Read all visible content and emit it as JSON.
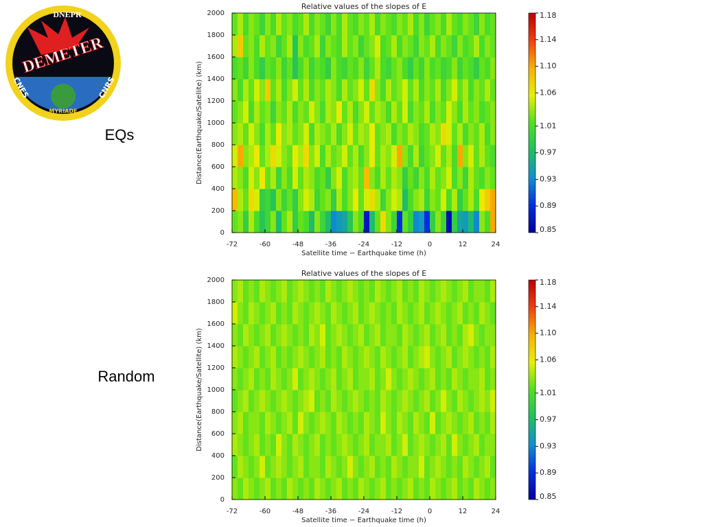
{
  "logo": {
    "top": "DNEPR",
    "name": "DEMETER",
    "left": "CNES",
    "right": "CNRS",
    "bottom": "MYRIADE"
  },
  "labels": [
    "EQs",
    "Random"
  ],
  "chart_data": [
    {
      "type": "heatmap",
      "title": "Relative values of the slopes of E",
      "xlabel": "Satellite time − Earthquake time (h)",
      "ylabel": "Distance(Earthquake/Satellite) (km)",
      "xlim": [
        -72,
        24
      ],
      "xticks": [
        -72,
        -60,
        -48,
        -36,
        -24,
        -12,
        0,
        12,
        24
      ],
      "ylim": [
        0,
        2000
      ],
      "yticks": [
        0,
        200,
        400,
        600,
        800,
        1000,
        1200,
        1400,
        1600,
        1800,
        2000
      ],
      "zlim": [
        0.85,
        1.18
      ],
      "zticks": [
        0.85,
        0.89,
        0.93,
        0.97,
        1.01,
        1.06,
        {
          "value": 1.1,
          "label": "1.10"
        },
        1.14,
        1.18
      ],
      "colormap": [
        "#0000a0",
        "#0030e0",
        "#1090d0",
        "#20c060",
        "#50e020",
        "#e8f000",
        "#f8b000",
        "#f04010",
        "#c00000"
      ],
      "z": [
        [
          1.02,
          1.03,
          0.99,
          1.04,
          1.01,
          0.98,
          1.0,
          1.03,
          0.97,
          1.02,
          1.04,
          0.99,
          1.02,
          1.01,
          0.97,
          1.03,
          1.0,
          0.97,
          0.93,
          0.94,
          0.95,
          0.98,
          1.03,
          1.01,
          0.87,
          0.97,
          1.02,
          1.07,
          1.03,
          1.0,
          0.89,
          1.02,
          0.99,
          0.93,
          0.94,
          0.89,
          0.99,
          1.03,
          1.0,
          0.86,
          0.99,
          0.95,
          0.94,
          0.97,
          0.93,
          1.03,
          1.01,
          1.1
        ],
        [
          1.09,
          1.04,
          1.02,
          1.07,
          1.05,
          0.99,
          1.0,
          0.98,
          1.03,
          1.0,
          1.02,
          0.99,
          1.03,
          1.05,
          1.04,
          1.0,
          1.02,
          1.03,
          0.99,
          1.04,
          1.01,
          1.03,
          1.06,
          1.02,
          1.05,
          1.07,
          1.04,
          1.0,
          1.03,
          1.05,
          1.04,
          0.97,
          1.01,
          1.03,
          1.04,
          1.0,
          1.03,
          1.02,
          1.05,
          1.01,
          1.04,
          0.99,
          1.02,
          1.04,
          1.01,
          1.06,
          1.08,
          1.1
        ],
        [
          1.04,
          1.03,
          1.01,
          1.05,
          1.03,
          1.06,
          1.02,
          1.04,
          1.0,
          1.03,
          1.01,
          1.05,
          1.02,
          1.04,
          1.03,
          1.01,
          1.02,
          0.99,
          1.03,
          1.05,
          1.01,
          1.03,
          1.04,
          1.02,
          1.09,
          1.03,
          1.01,
          1.04,
          1.02,
          1.04,
          1.03,
          0.99,
          1.02,
          1.0,
          1.03,
          1.01,
          1.04,
          1.02,
          1.03,
          1.05,
          1.01,
          1.03,
          1.0,
          1.04,
          1.02,
          1.01,
          1.03,
          1.02
        ],
        [
          1.05,
          1.1,
          1.03,
          1.04,
          1.06,
          1.02,
          1.04,
          1.07,
          1.05,
          1.03,
          1.02,
          1.06,
          1.04,
          1.07,
          1.03,
          1.05,
          1.01,
          1.04,
          1.02,
          1.03,
          1.05,
          1.02,
          1.04,
          1.01,
          1.03,
          1.06,
          1.02,
          1.04,
          1.03,
          1.05,
          1.1,
          1.03,
          1.01,
          1.04,
          1.0,
          1.02,
          1.03,
          1.05,
          1.02,
          1.04,
          1.01,
          1.1,
          1.03,
          1.05,
          1.02,
          1.04,
          1.02,
          1.01
        ],
        [
          1.03,
          1.04,
          1.02,
          1.05,
          1.03,
          1.01,
          1.04,
          1.02,
          1.06,
          1.03,
          1.04,
          1.02,
          1.03,
          1.05,
          1.01,
          1.04,
          1.03,
          1.02,
          1.04,
          1.01,
          1.03,
          1.05,
          1.02,
          1.04,
          1.03,
          1.06,
          1.02,
          1.03,
          1.04,
          1.01,
          1.03,
          1.02,
          1.04,
          1.03,
          1.01,
          1.02,
          1.04,
          1.03,
          1.07,
          1.05,
          1.02,
          1.04,
          1.01,
          1.03,
          1.02,
          1.04,
          1.01,
          1.03
        ],
        [
          1.02,
          1.03,
          1.05,
          1.01,
          1.04,
          1.02,
          1.03,
          1.0,
          1.03,
          1.02,
          1.04,
          1.01,
          1.03,
          1.02,
          1.05,
          1.03,
          1.01,
          1.04,
          1.03,
          1.06,
          1.02,
          1.04,
          1.01,
          1.03,
          1.05,
          1.02,
          1.04,
          1.03,
          1.01,
          1.04,
          1.02,
          1.05,
          1.01,
          1.03,
          1.02,
          1.04,
          1.01,
          1.03,
          1.02,
          1.05,
          1.03,
          1.01,
          1.04,
          1.02,
          1.03,
          1.01,
          1.02,
          1.03
        ],
        [
          1.03,
          1.01,
          1.04,
          1.02,
          1.05,
          1.03,
          1.08,
          1.02,
          1.04,
          1.01,
          1.03,
          1.05,
          1.02,
          1.04,
          1.01,
          1.03,
          1.02,
          1.04,
          1.03,
          1.01,
          1.04,
          1.02,
          1.03,
          1.05,
          1.02,
          1.07,
          1.03,
          1.01,
          1.04,
          1.02,
          1.03,
          1.05,
          1.02,
          1.04,
          1.01,
          1.03,
          1.02,
          1.04,
          1.01,
          1.03,
          1.05,
          1.02,
          1.04,
          1.01,
          1.03,
          1.02,
          1.04,
          1.02
        ],
        [
          1.01,
          1.02,
          1.0,
          1.03,
          1.01,
          0.99,
          1.02,
          1.01,
          1.03,
          1.0,
          1.02,
          0.98,
          1.01,
          1.03,
          1.0,
          1.02,
          1.01,
          0.99,
          1.03,
          1.01,
          1.0,
          1.02,
          1.01,
          1.03,
          1.0,
          1.02,
          1.04,
          1.01,
          1.0,
          1.02,
          1.03,
          1.01,
          0.99,
          1.02,
          1.0,
          1.03,
          1.01,
          1.02,
          1.0,
          1.01,
          1.03,
          1.0,
          1.02,
          1.01,
          0.99,
          1.02,
          1.01,
          1.03
        ],
        [
          1.04,
          1.08,
          1.02,
          1.03,
          1.01,
          1.04,
          1.02,
          1.03,
          1.0,
          1.02,
          1.04,
          0.98,
          1.03,
          1.01,
          1.02,
          1.04,
          1.0,
          1.03,
          1.02,
          1.01,
          1.04,
          1.02,
          1.03,
          1.0,
          1.02,
          1.03,
          1.05,
          1.01,
          1.02,
          1.04,
          1.01,
          1.03,
          1.02,
          1.0,
          1.03,
          1.02,
          1.04,
          1.01,
          1.03,
          1.02,
          1.0,
          1.03,
          1.01,
          1.02,
          1.04,
          1.01,
          1.03,
          1.02
        ],
        [
          1.02,
          1.04,
          1.01,
          1.03,
          1.02,
          1.0,
          1.03,
          1.01,
          1.04,
          1.02,
          1.03,
          1.01,
          1.02,
          1.04,
          1.01,
          1.03,
          1.02,
          1.0,
          1.03,
          1.01,
          1.04,
          1.02,
          1.01,
          1.03,
          1.02,
          1.04,
          1.01,
          1.03,
          1.02,
          1.01,
          1.03,
          1.02,
          1.04,
          1.01,
          1.03,
          1.0,
          1.02,
          1.03,
          1.01,
          1.04,
          1.02,
          1.01,
          1.03,
          1.02,
          1.0,
          1.03,
          1.01,
          1.02
        ]
      ]
    },
    {
      "type": "heatmap",
      "title": "Relative values of the slopes of E",
      "xlabel": "Satellite time − Earthquake time (h)",
      "ylabel": "Distance(Earthquake/Satellite) (km)",
      "xlim": [
        -72,
        24
      ],
      "xticks": [
        -72,
        -60,
        -48,
        -36,
        -24,
        -12,
        0,
        12,
        24
      ],
      "ylim": [
        0,
        2000
      ],
      "yticks": [
        0,
        200,
        400,
        600,
        800,
        1000,
        1200,
        1400,
        1600,
        1800,
        2000
      ],
      "zlim": [
        0.85,
        1.18
      ],
      "zticks": [
        0.85,
        0.89,
        0.93,
        0.97,
        1.01,
        1.06,
        {
          "value": 1.1,
          "label": "1.10"
        },
        1.14,
        1.18
      ],
      "colormap": [
        "#0000a0",
        "#0030e0",
        "#1090d0",
        "#20c060",
        "#50e020",
        "#e8f000",
        "#f8b000",
        "#f04010",
        "#c00000"
      ],
      "z": [
        [
          1.03,
          1.02,
          1.04,
          1.03,
          1.02,
          1.03,
          1.04,
          1.02,
          1.03,
          1.02,
          1.04,
          1.03,
          1.02,
          1.03,
          1.02,
          1.04,
          1.03,
          1.02,
          1.03,
          1.04,
          1.02,
          1.03,
          1.02,
          1.04,
          1.03,
          1.02,
          1.03,
          1.04,
          1.02,
          1.03,
          1.02,
          1.03,
          1.04,
          1.02,
          1.03,
          1.02,
          1.04,
          1.03,
          1.02,
          1.03,
          1.04,
          1.02,
          1.03,
          1.02,
          1.04,
          1.03,
          1.02,
          1.03
        ],
        [
          1.02,
          1.04,
          1.03,
          1.02,
          1.03,
          1.05,
          1.02,
          1.03,
          1.04,
          1.03,
          1.02,
          1.03,
          1.04,
          1.02,
          1.03,
          1.03,
          1.02,
          1.04,
          1.03,
          1.02,
          1.03,
          1.05,
          1.03,
          1.02,
          1.03,
          1.04,
          1.02,
          1.03,
          1.02,
          1.04,
          1.03,
          1.02,
          1.03,
          1.03,
          1.05,
          1.02,
          1.03,
          1.04,
          1.03,
          1.02,
          1.03,
          1.02,
          1.04,
          1.03,
          1.02,
          1.03,
          1.04,
          1.02
        ],
        [
          1.04,
          1.03,
          1.02,
          1.03,
          1.04,
          1.02,
          1.03,
          1.02,
          1.05,
          1.03,
          1.02,
          1.04,
          1.03,
          1.02,
          1.03,
          1.04,
          1.02,
          1.03,
          1.02,
          1.03,
          1.04,
          1.03,
          1.02,
          1.03,
          1.04,
          1.02,
          1.03,
          1.03,
          1.04,
          1.02,
          1.03,
          1.05,
          1.02,
          1.03,
          1.04,
          1.03,
          1.02,
          1.03,
          1.04,
          1.02,
          1.05,
          1.03,
          1.02,
          1.03,
          1.04,
          1.02,
          1.03,
          1.03
        ],
        [
          1.03,
          1.04,
          1.02,
          1.03,
          1.03,
          1.02,
          1.04,
          1.03,
          1.02,
          1.03,
          1.04,
          1.02,
          1.05,
          1.03,
          1.02,
          1.03,
          1.04,
          1.03,
          1.02,
          1.04,
          1.03,
          1.02,
          1.03,
          1.02,
          1.04,
          1.03,
          1.02,
          1.05,
          1.03,
          1.02,
          1.04,
          1.03,
          1.02,
          1.04,
          1.03,
          1.02,
          1.05,
          1.02,
          1.03,
          1.04,
          1.03,
          1.02,
          1.03,
          1.04,
          1.02,
          1.03,
          1.02,
          1.04
        ],
        [
          1.02,
          1.03,
          1.04,
          1.02,
          1.03,
          1.04,
          1.03,
          1.02,
          1.03,
          1.04,
          1.03,
          1.02,
          1.03,
          1.04,
          1.05,
          1.02,
          1.03,
          1.02,
          1.04,
          1.03,
          1.02,
          1.03,
          1.04,
          1.03,
          1.02,
          1.03,
          1.02,
          1.04,
          1.03,
          1.02,
          1.03,
          1.04,
          1.03,
          1.02,
          1.03,
          1.04,
          1.02,
          1.03,
          1.05,
          1.03,
          1.02,
          1.04,
          1.03,
          1.02,
          1.03,
          1.04,
          1.03,
          1.05
        ],
        [
          1.03,
          1.02,
          1.03,
          1.04,
          1.02,
          1.03,
          1.02,
          1.04,
          1.03,
          1.02,
          1.03,
          1.05,
          1.02,
          1.03,
          1.04,
          1.03,
          1.02,
          1.03,
          1.04,
          1.02,
          1.03,
          1.04,
          1.02,
          1.03,
          1.03,
          1.04,
          1.02,
          1.03,
          1.05,
          1.03,
          1.02,
          1.03,
          1.04,
          1.03,
          1.02,
          1.03,
          1.04,
          1.02,
          1.03,
          1.02,
          1.04,
          1.03,
          1.02,
          1.03,
          1.03,
          1.04,
          1.02,
          1.03
        ],
        [
          1.04,
          1.03,
          1.02,
          1.03,
          1.04,
          1.02,
          1.03,
          1.04,
          1.02,
          1.03,
          1.02,
          1.03,
          1.04,
          1.03,
          1.02,
          1.03,
          1.04,
          1.02,
          1.03,
          1.02,
          1.04,
          1.03,
          1.02,
          1.03,
          1.04,
          1.03,
          1.02,
          1.04,
          1.03,
          1.02,
          1.03,
          1.04,
          1.02,
          1.03,
          1.04,
          1.05,
          1.03,
          1.02,
          1.03,
          1.04,
          1.02,
          1.03,
          1.04,
          1.03,
          1.02,
          1.03,
          1.02,
          1.04
        ],
        [
          1.03,
          1.02,
          1.04,
          1.03,
          1.02,
          1.03,
          1.04,
          1.02,
          1.03,
          1.04,
          1.03,
          1.02,
          1.03,
          1.02,
          1.04,
          1.03,
          1.05,
          1.02,
          1.03,
          1.04,
          1.03,
          1.02,
          1.03,
          1.04,
          1.02,
          1.03,
          1.04,
          1.02,
          1.03,
          1.03,
          1.02,
          1.04,
          1.03,
          1.02,
          1.03,
          1.04,
          1.02,
          1.03,
          1.04,
          1.02,
          1.03,
          1.02,
          1.04,
          1.05,
          1.03,
          1.02,
          1.03,
          1.03
        ],
        [
          1.05,
          1.03,
          1.02,
          1.04,
          1.03,
          1.02,
          1.03,
          1.04,
          1.02,
          1.03,
          1.02,
          1.04,
          1.03,
          1.02,
          1.03,
          1.04,
          1.03,
          1.02,
          1.04,
          1.03,
          1.02,
          1.03,
          1.04,
          1.02,
          1.03,
          1.04,
          1.03,
          1.02,
          1.03,
          1.02,
          1.04,
          1.03,
          1.02,
          1.03,
          1.04,
          1.02,
          1.03,
          1.04,
          1.03,
          1.02,
          1.03,
          1.04,
          1.02,
          1.03,
          1.02,
          1.04,
          1.03,
          1.02
        ],
        [
          1.03,
          1.04,
          1.02,
          1.03,
          1.02,
          1.04,
          1.03,
          1.02,
          1.03,
          1.04,
          1.02,
          1.03,
          1.04,
          1.03,
          1.02,
          1.03,
          1.02,
          1.04,
          1.03,
          1.02,
          1.03,
          1.04,
          1.03,
          1.02,
          1.03,
          1.02,
          1.04,
          1.03,
          1.02,
          1.03,
          1.04,
          1.02,
          1.03,
          1.02,
          1.04,
          1.03,
          1.02,
          1.03,
          1.04,
          1.03,
          1.02,
          1.03,
          1.04,
          1.02,
          1.03,
          1.03,
          1.02,
          1.04
        ]
      ]
    }
  ]
}
